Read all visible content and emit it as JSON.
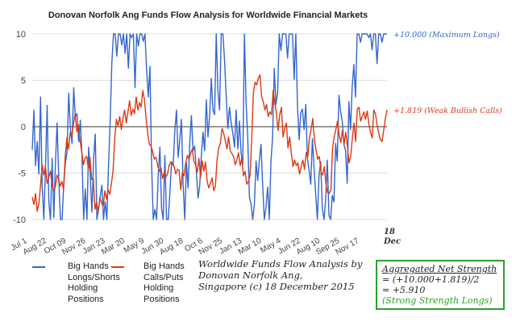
{
  "chart_data": {
    "type": "line",
    "title": "Donovan Norfolk Ang Funds Flow Analysis for Worldwide Financial Markets",
    "ylim": [
      -10,
      10
    ],
    "y_ticks": [
      10,
      5,
      0,
      -5,
      -10
    ],
    "x_tick_labels": [
      "Jul 1",
      "Aug 22",
      "Oct 09",
      "Nov 26",
      "Jan 23",
      "Mar 20",
      "May 9",
      "Jun 30",
      "Aug 18",
      "Oct 6",
      "Nov 25",
      "Jan 13",
      "Mar 10",
      "May 4",
      "Jun 22",
      "Aug 10",
      "Sep 25",
      "Nov 17",
      "18\nDec"
    ],
    "grid": "horizontal",
    "legend_position": "bottom-left",
    "series": [
      {
        "name": "Big Hands\nLongs/Shorts\nHolding\nPositions",
        "color": "#3366cc",
        "values": [
          -2.5,
          1.8,
          -4.2,
          -1.6,
          -5.1,
          3.2,
          -6.5,
          -10,
          -4.3,
          2.3,
          -8.1,
          -10,
          -3.4,
          -9.8,
          -3.9,
          0.4,
          -5.6,
          -10,
          -10,
          -6.2,
          -3.9,
          -2.7,
          3.6,
          -0.2,
          -1.8,
          4.2,
          1.1,
          1.4,
          -1.6,
          0.7,
          -3.1,
          -10,
          -6.7,
          -10,
          -2.2,
          -5.4,
          -9.2,
          -3.5,
          -0.8,
          -10,
          -8.8,
          -7.5,
          -6.3,
          -10,
          -8.1,
          -10,
          -4.2,
          0.5,
          6.8,
          10,
          10,
          7.6,
          10,
          10,
          8.8,
          10,
          7.9,
          10,
          6.3,
          10,
          9.6,
          10,
          4.2,
          10,
          8.7,
          10,
          10,
          9.2,
          10,
          6.1,
          3.2,
          6.5,
          -4.1,
          -10,
          -8.9,
          -10,
          -5.3,
          -2.2,
          -8.8,
          -10,
          -3.1,
          -10,
          -10,
          -7.3,
          -3.8,
          -4.2,
          -0.5,
          1.8,
          -3.3,
          -1.4,
          0.8,
          -6.2,
          -10,
          -3.9,
          -6.6,
          -1.8,
          1.2,
          -2.6,
          -2.1,
          -4.8,
          -7.7,
          -6.4,
          -3.2,
          -0.6,
          -2.6,
          2.9,
          -1.1,
          1.2,
          5.2,
          1.8,
          1.3,
          10,
          3.9,
          1.8,
          10,
          10,
          7.2,
          3.3,
          -0.2,
          2.1,
          0.4,
          -0.7,
          -2.2,
          1.8,
          -2.4,
          0.6,
          -2.9,
          -4.1,
          10,
          2.6,
          -1.2,
          -7.6,
          -8.3,
          -10,
          -8.4,
          -3.7,
          -5.8,
          -3.6,
          -1.9,
          -6.3,
          -10,
          -8.7,
          -6.5,
          -10,
          -3.8,
          -1.1,
          6.3,
          2.4,
          3.6,
          10,
          8.2,
          10,
          10,
          10,
          7.4,
          10,
          10,
          10,
          5.1,
          10,
          2.2,
          -1.4,
          1.5,
          1.9,
          -0.3,
          2.4,
          -3.4,
          -4.7,
          -6.2,
          -1.3,
          -4.5,
          -7.3,
          -10,
          -5.2,
          -3.8,
          -8.8,
          -10,
          -7.9,
          -3.6,
          -9.6,
          -10,
          -7.4,
          -8.1,
          -1.8,
          -3.7,
          3.4,
          1.7,
          0.6,
          -1.9,
          -2.6,
          -6.1,
          2.7,
          -0.3,
          4.3,
          6.7,
          3.2,
          10,
          10,
          9.1,
          10,
          10,
          10,
          10,
          9.6,
          10,
          8.3,
          10,
          10,
          6.8,
          10,
          10,
          9.1,
          10,
          10,
          10
        ]
      },
      {
        "name": "Big Hands\nCalls/Puts\nHolding\nPositions",
        "color": "#dc3912",
        "values": [
          -7.6,
          -8.4,
          -7.2,
          -9.1,
          -8.3,
          -6.4,
          -4.1,
          -5.2,
          -4.3,
          -6.1,
          -5.5,
          -4.8,
          -6.2,
          -6.9,
          -6.5,
          -5.2,
          -5.7,
          -6.4,
          -5.9,
          -6.8,
          -3.1,
          -1.2,
          -2.4,
          -0.6,
          -0.9,
          0.3,
          1.4,
          -0.5,
          0.2,
          -1.6,
          -2.7,
          -4.1,
          -3.4,
          -3.2,
          -4.5,
          -3.3,
          -5.7,
          -5.6,
          -8.9,
          -8.1,
          -9.2,
          -7.7,
          -8.2,
          -8.6,
          -6.9,
          -7.8,
          -6.8,
          -7.3,
          -6.1,
          -4.7,
          -1.3,
          0.8,
          0.1,
          1.1,
          -0.3,
          0.9,
          1.8,
          0.4,
          1.6,
          2.8,
          1.2,
          1.9,
          1.4,
          3.2,
          1.8,
          2.6,
          2.1,
          3.9,
          2.9,
          0.9,
          -0.8,
          -1.9,
          -2.1,
          -2.7,
          -3.5,
          -3.3,
          -4.2,
          -4.8,
          -4.4,
          -5.6,
          -4.9,
          -5.4,
          -5.1,
          -4.1,
          -3.8,
          -3.9,
          -4.3,
          -5.1,
          -4.6,
          -4.7,
          -6.8,
          -4.9,
          -5.3,
          -3.9,
          -3.1,
          -3.5,
          -2.9,
          -2.4,
          -3.8,
          -4.1,
          -4.9,
          -3.4,
          -5.5,
          -3.7,
          -4.8,
          -3.8,
          -5.9,
          -6.6,
          -6.1,
          -5.5,
          -6.9,
          -6.4,
          -3.6,
          -2.3,
          -1.8,
          -0.2,
          -0.7,
          -1.5,
          -2.4,
          -1.1,
          -2.6,
          -2.9,
          -3.2,
          -4.1,
          -3.6,
          -2.8,
          -4.2,
          -3.4,
          -5.3,
          -4.8,
          -6.2,
          -5.9,
          -5.3,
          -1.4,
          3.6,
          4.8,
          4.5,
          5.2,
          5.6,
          3.2,
          2.7,
          1.8,
          2.4,
          1.1,
          1.6,
          1.3,
          3.9,
          2.6,
          1.4,
          -0.4,
          1.3,
          2.1,
          -1.1,
          -0.2,
          0.4,
          -2.3,
          -1.1,
          -2.8,
          -4.3,
          -3.6,
          -4.2,
          -3.9,
          -5.1,
          -4.3,
          -3.6,
          -4.6,
          -2.8,
          -3.3,
          -1.2,
          -0.3,
          0.9,
          -1.4,
          -2.5,
          -3.5,
          -3.2,
          -4.9,
          -5.2,
          -4.3,
          -6.2,
          -7.1,
          -7.2,
          -6.8,
          -2.3,
          -1.1,
          -0.3,
          0.6,
          -0.9,
          -1.7,
          -0.4,
          -1.9,
          -0.6,
          -2.1,
          -3.9,
          -3.2,
          -1.2,
          0.4,
          -1.6,
          1.9,
          2.1,
          0.6,
          1.1,
          1.6,
          0.8,
          1.7,
          0.3,
          -0.6,
          -1.2,
          1.8,
          1.4,
          0.2,
          -0.7,
          -1.4,
          -1.6,
          -0.4,
          0.9,
          1.819
        ]
      }
    ],
    "annotations": [
      {
        "series": 0,
        "text": "+10.000 (Maximum Longs)"
      },
      {
        "series": 1,
        "text": "+1.819 (Weak Bullish Calls)"
      }
    ]
  },
  "note": {
    "text": "Worldwide Funds Flow Analysis by\nDonovan Norfolk Ang,\nSingapore (c) 18 December 2015"
  },
  "summary": {
    "heading": "Aggregated Net Strength",
    "formula": "= (+10.000+1.819)/2",
    "result": "= +5.910",
    "verdict": "(Strong Strength Longs)",
    "accent_color": "#2ca02c"
  }
}
